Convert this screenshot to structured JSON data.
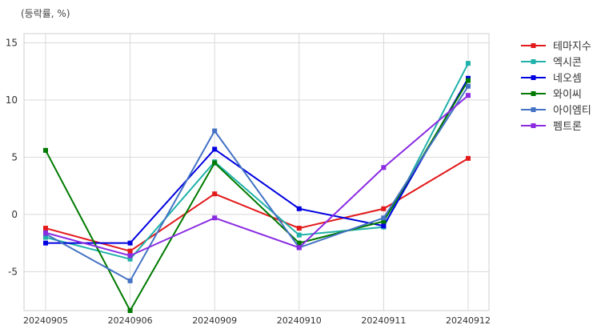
{
  "unit_label": "(등락률, %)",
  "chart_data": {
    "type": "line",
    "categories": [
      "20240905",
      "20240906",
      "20240909",
      "20240910",
      "20240911",
      "20240912"
    ],
    "ylim": [
      -8.4,
      15.8
    ],
    "yticks": [
      15,
      10,
      5,
      0,
      -5
    ],
    "ytick_labels": [
      "15",
      "10",
      "5",
      "0",
      "-5"
    ],
    "grid": true,
    "legend_position": "right",
    "series": [
      {
        "name": "테마지수",
        "color": "#e31a1c",
        "values": [
          -1.2,
          -3.2,
          1.8,
          -1.2,
          0.5,
          4.9
        ]
      },
      {
        "name": "엑시콘",
        "color": "#20b2aa",
        "values": [
          -2.0,
          -3.9,
          4.6,
          -1.8,
          -1.1,
          13.2
        ]
      },
      {
        "name": "네오셈",
        "color": "#0000e0",
        "values": [
          -2.5,
          -2.5,
          5.7,
          0.5,
          -1.0,
          11.9
        ]
      },
      {
        "name": "와이씨",
        "color": "#007a00",
        "values": [
          5.6,
          -8.4,
          4.5,
          -2.5,
          -0.6,
          11.7
        ]
      },
      {
        "name": "아이엠티",
        "color": "#4472c4",
        "values": [
          -1.7,
          -5.8,
          7.3,
          -2.9,
          -0.3,
          11.2
        ]
      },
      {
        "name": "펨트론",
        "color": "#8a2be2",
        "values": [
          -1.6,
          -3.6,
          -0.3,
          -2.9,
          4.1,
          10.4
        ]
      }
    ]
  }
}
